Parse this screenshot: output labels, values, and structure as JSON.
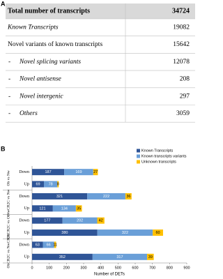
{
  "panel_a": {
    "label": "A"
  },
  "table": {
    "rows": [
      {
        "label": "Total number of transcripts",
        "value": 34724
      },
      {
        "label": "Known Transcripts",
        "value": 19082
      },
      {
        "label": "Novel variants of known transcripts",
        "value": 15642
      },
      {
        "prefix": "-",
        "label": "Novel splicing variants",
        "value": 12078
      },
      {
        "prefix": "-",
        "label": "Novel antisense",
        "value": 208
      },
      {
        "prefix": "-",
        "label": "Novel intergenic",
        "value": 297
      },
      {
        "prefix": "-",
        "label": "Others",
        "value": 3059
      }
    ]
  },
  "panel_b": {
    "label": "B"
  },
  "chart_data": {
    "type": "stacked-barh",
    "groups": [
      {
        "name": "Ob vs Nw",
        "rows": [
          0,
          1
        ]
      },
      {
        "name": "NwCR2C vs Nw",
        "rows": [
          2,
          3
        ]
      },
      {
        "name": "ObCR2C vs Ob",
        "rows": [
          4,
          5
        ]
      },
      {
        "name": "ObCR2C vs NwCR2C",
        "rows": [
          6,
          7
        ]
      }
    ],
    "categories": [
      "Down",
      "Up",
      "Down",
      "Up",
      "Down",
      "Up",
      "Down",
      "Up"
    ],
    "series": [
      {
        "name": "Known Transcripts",
        "color": "#2f5597",
        "label_color": "#ffffff",
        "values": [
          187,
          69,
          321,
          121,
          177,
          380,
          63,
          352
        ]
      },
      {
        "name": "Known transcripts variants",
        "color": "#6a9fd8",
        "label_color": "#ffffff",
        "values": [
          169,
          78,
          222,
          134,
          202,
          322,
          66,
          317
        ]
      },
      {
        "name": "Unknown transcripts",
        "color": "#ffc000",
        "label_color": "#000000",
        "values": [
          27,
          8,
          36,
          35,
          42,
          60,
          11,
          39
        ]
      }
    ],
    "xlabel": "Number of DETs",
    "xlim": [
      0,
      900
    ],
    "xticks": [
      0,
      100,
      200,
      300,
      400,
      500,
      600,
      700,
      800,
      900
    ],
    "grid": false,
    "legend": "top-right"
  }
}
